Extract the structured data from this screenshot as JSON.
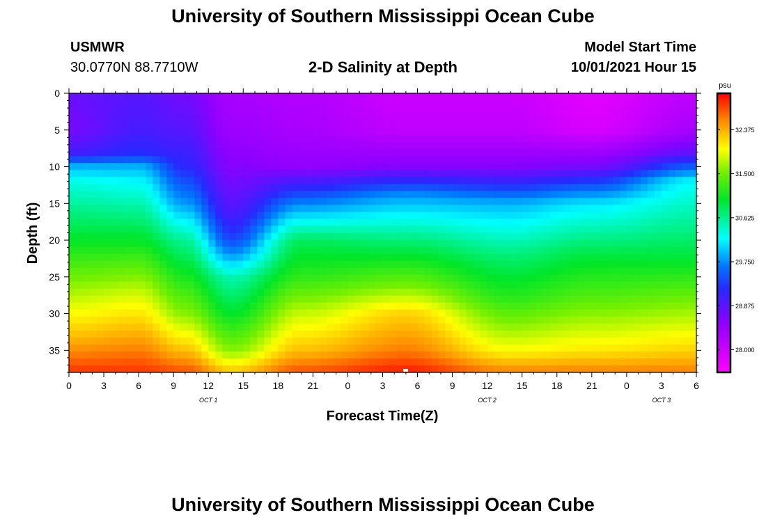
{
  "page": {
    "title_top": "University of Southern Mississippi Ocean Cube",
    "title_bottom": "University of Southern Mississippi Ocean Cube",
    "station_name": "USMWR",
    "station_coords": "30.0770N  88.7710W",
    "model_label": "Model Start Time",
    "model_time": "10/01/2021 Hour 15"
  },
  "chart_data": {
    "type": "heatmap",
    "title": "2-D Salinity at Depth",
    "xlabel": "Forecast Time(Z)",
    "ylabel": "Depth (ft)",
    "x_tick_labels": [
      "0",
      "3",
      "6",
      "9",
      "12",
      "15",
      "18",
      "21",
      "0",
      "3",
      "6",
      "9",
      "12",
      "15",
      "18",
      "21",
      "0",
      "3",
      "6"
    ],
    "x_range_hours": [
      0,
      54
    ],
    "y_ticks": [
      0,
      5,
      10,
      15,
      20,
      25,
      30,
      35
    ],
    "ylim": [
      0,
      38
    ],
    "date_labels": [
      {
        "text": "OCT 1",
        "hour": 12
      },
      {
        "text": "OCT 2",
        "hour": 36
      },
      {
        "text": "OCT 3",
        "hour": 51
      }
    ],
    "colorbar": {
      "unit": "psu",
      "ticks": [
        "32.375",
        "31.500",
        "30.625",
        "29.750",
        "28.875",
        "28.000"
      ],
      "tick_values": [
        32.375,
        31.5,
        30.625,
        29.75,
        28.875,
        28.0
      ],
      "range": [
        27.55,
        33.1
      ]
    },
    "salinity_profiles": [
      {
        "hour": 0,
        "depths": [
          0,
          5,
          8,
          9,
          10,
          12,
          20,
          27,
          33,
          38
        ],
        "values": [
          28.8,
          28.7,
          29.0,
          29.4,
          29.9,
          30.3,
          31.0,
          31.7,
          32.3,
          32.9
        ]
      },
      {
        "hour": 6,
        "depths": [
          0,
          5,
          8,
          9,
          10,
          12,
          20,
          27,
          33,
          38
        ],
        "values": [
          28.9,
          29.0,
          29.2,
          29.5,
          29.9,
          30.2,
          31.0,
          31.8,
          32.4,
          32.9
        ]
      },
      {
        "hour": 10,
        "depths": [
          0,
          5,
          10,
          15,
          20,
          25,
          30,
          35,
          38
        ],
        "values": [
          28.7,
          28.9,
          29.2,
          29.8,
          30.6,
          31.1,
          31.6,
          32.3,
          32.8
        ]
      },
      {
        "hour": 14,
        "depths": [
          0,
          5,
          10,
          16,
          20,
          22,
          25,
          30,
          35,
          38
        ],
        "values": [
          28.3,
          28.4,
          28.6,
          28.95,
          29.4,
          29.8,
          30.5,
          31.0,
          31.6,
          32.3
        ]
      },
      {
        "hour": 20,
        "depths": [
          0,
          5,
          10,
          15,
          20,
          25,
          30,
          35,
          38
        ],
        "values": [
          28.2,
          28.3,
          28.5,
          29.7,
          30.8,
          31.2,
          31.8,
          32.3,
          32.8
        ]
      },
      {
        "hour": 29,
        "depths": [
          0,
          5,
          10,
          14,
          20,
          26,
          30,
          35,
          38
        ],
        "values": [
          28.0,
          28.1,
          28.6,
          29.8,
          30.7,
          31.5,
          32.2,
          32.6,
          33.0
        ]
      },
      {
        "hour": 38,
        "depths": [
          0,
          5,
          10,
          12,
          15,
          22,
          28,
          35,
          38
        ],
        "values": [
          28.0,
          28.1,
          28.6,
          29.1,
          29.9,
          30.7,
          31.2,
          32.0,
          32.6
        ]
      },
      {
        "hour": 45,
        "depths": [
          0,
          5,
          10,
          12,
          15,
          22,
          28,
          35,
          38
        ],
        "values": [
          27.8,
          27.9,
          28.7,
          29.3,
          30.1,
          30.9,
          31.4,
          32.1,
          32.6
        ]
      },
      {
        "hour": 54,
        "depths": [
          0,
          5,
          8,
          10,
          12,
          22,
          28,
          35,
          38
        ],
        "values": [
          28.1,
          28.3,
          28.8,
          29.5,
          30.2,
          30.9,
          31.5,
          32.2,
          32.6
        ]
      }
    ]
  }
}
